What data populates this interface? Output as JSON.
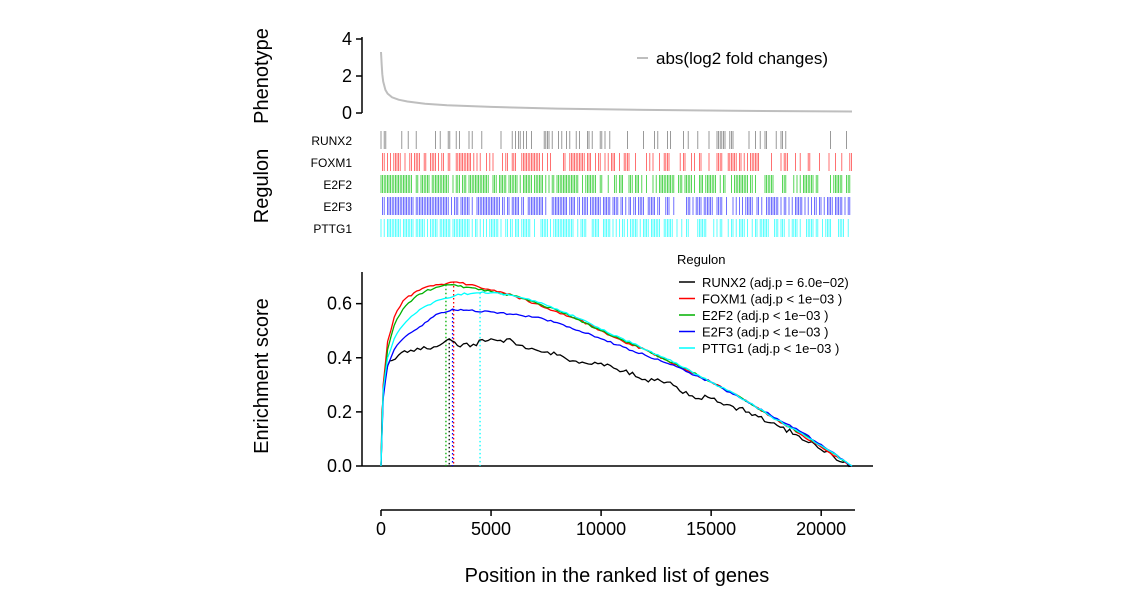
{
  "chart_data": [
    {
      "panel": "phenotype",
      "type": "line",
      "ylabel": "Phenotype",
      "ylim": [
        0,
        4
      ],
      "yticks": [
        "0",
        "2",
        "4"
      ],
      "legend": "abs(log2 fold changes)",
      "color": "#bebebe",
      "x": [
        0,
        30,
        60,
        100,
        200,
        300,
        500,
        800,
        1200,
        2000,
        3000,
        5000,
        8000,
        12000,
        16000,
        21400
      ],
      "y": [
        3.3,
        2.6,
        2.1,
        1.7,
        1.25,
        1.05,
        0.85,
        0.72,
        0.62,
        0.5,
        0.42,
        0.33,
        0.24,
        0.17,
        0.12,
        0.08
      ]
    },
    {
      "panel": "regulon",
      "type": "rug",
      "ylabel": "Regulon",
      "rows": [
        {
          "name": "RUNX2",
          "color": "#808080",
          "density": 0.25
        },
        {
          "name": "FOXM1",
          "color": "#ff4d4d",
          "density": 0.55
        },
        {
          "name": "E2F2",
          "color": "#2ecc2e",
          "density": 0.7
        },
        {
          "name": "E2F3",
          "color": "#4d4dff",
          "density": 0.75
        },
        {
          "name": "PTTG1",
          "color": "#33ffff",
          "density": 0.7
        }
      ]
    },
    {
      "panel": "enrichment",
      "type": "line",
      "ylabel": "Enrichment score",
      "xlabel": "Position in the ranked list of genes",
      "xlim": [
        0,
        21400
      ],
      "ylim": [
        0,
        0.68
      ],
      "xticks": [
        "0",
        "5000",
        "10000",
        "15000",
        "20000"
      ],
      "yticks": [
        "0.0",
        "0.2",
        "0.4",
        "0.6"
      ],
      "legend_title": "Regulon",
      "series": [
        {
          "name": "RUNX2 (adj.p = 6.0e−02)",
          "color": "#000000",
          "peak_x": 3100,
          "x": [
            0,
            50,
            150,
            300,
            500,
            800,
            1200,
            1800,
            2400,
            3100,
            3600,
            4200,
            5000,
            6000,
            7000,
            8000,
            9000,
            10000,
            11000,
            12000,
            13000,
            14000,
            15000,
            16000,
            17000,
            18000,
            19000,
            20000,
            21400
          ],
          "y": [
            0,
            0.2,
            0.32,
            0.37,
            0.39,
            0.41,
            0.42,
            0.43,
            0.44,
            0.47,
            0.44,
            0.45,
            0.47,
            0.46,
            0.43,
            0.41,
            0.38,
            0.38,
            0.35,
            0.32,
            0.31,
            0.26,
            0.25,
            0.22,
            0.19,
            0.15,
            0.11,
            0.06,
            0
          ]
        },
        {
          "name": "FOXM1 (adj.p < 1e−03  )",
          "color": "#ff0000",
          "peak_x": 3300,
          "x": [
            0,
            100,
            300,
            600,
            1000,
            1500,
            2000,
            2500,
            3000,
            3300,
            4000,
            5000,
            6000,
            7000,
            8000,
            9000,
            10000,
            11000,
            12000,
            13000,
            14000,
            15000,
            16000,
            17000,
            18000,
            19000,
            20000,
            21400
          ],
          "y": [
            0,
            0.3,
            0.46,
            0.55,
            0.61,
            0.64,
            0.66,
            0.67,
            0.675,
            0.68,
            0.67,
            0.65,
            0.63,
            0.6,
            0.57,
            0.54,
            0.5,
            0.46,
            0.43,
            0.39,
            0.35,
            0.31,
            0.27,
            0.22,
            0.17,
            0.12,
            0.07,
            0
          ]
        },
        {
          "name": "E2F2 (adj.p < 1e−03  )",
          "color": "#00b000",
          "peak_x": 2950,
          "x": [
            0,
            100,
            300,
            600,
            1000,
            1500,
            2000,
            2500,
            2950,
            3500,
            4000,
            5000,
            6000,
            7000,
            8000,
            9000,
            10000,
            11000,
            12000,
            13000,
            14000,
            15000,
            16000,
            17000,
            18000,
            19000,
            20000,
            21400
          ],
          "y": [
            0,
            0.28,
            0.43,
            0.52,
            0.58,
            0.62,
            0.645,
            0.66,
            0.67,
            0.665,
            0.66,
            0.645,
            0.63,
            0.605,
            0.575,
            0.54,
            0.5,
            0.465,
            0.43,
            0.39,
            0.355,
            0.31,
            0.27,
            0.22,
            0.17,
            0.125,
            0.075,
            0
          ]
        },
        {
          "name": "E2F3 (adj.p < 1e−03  )",
          "color": "#0000ff",
          "peak_x": 3250,
          "x": [
            0,
            100,
            300,
            600,
            1000,
            1500,
            2000,
            2500,
            3250,
            4000,
            5000,
            6000,
            7000,
            8000,
            9000,
            10000,
            11000,
            12000,
            13000,
            14000,
            15000,
            16000,
            17000,
            18000,
            19000,
            20000,
            21400
          ],
          "y": [
            0,
            0.25,
            0.37,
            0.43,
            0.47,
            0.5,
            0.53,
            0.56,
            0.58,
            0.575,
            0.57,
            0.56,
            0.55,
            0.53,
            0.5,
            0.47,
            0.44,
            0.41,
            0.38,
            0.345,
            0.31,
            0.265,
            0.22,
            0.175,
            0.13,
            0.08,
            0
          ]
        },
        {
          "name": "PTTG1 (adj.p < 1e−03  )",
          "color": "#00ffff",
          "peak_x": 4500,
          "x": [
            0,
            100,
            300,
            600,
            1000,
            1500,
            2000,
            2500,
            3000,
            3500,
            4500,
            5000,
            6000,
            7000,
            8000,
            9000,
            10000,
            11000,
            12000,
            13000,
            14000,
            15000,
            16000,
            17000,
            18000,
            19000,
            20000,
            21400
          ],
          "y": [
            0,
            0.28,
            0.4,
            0.47,
            0.52,
            0.56,
            0.59,
            0.61,
            0.62,
            0.635,
            0.64,
            0.64,
            0.63,
            0.61,
            0.58,
            0.545,
            0.505,
            0.47,
            0.43,
            0.395,
            0.355,
            0.31,
            0.27,
            0.22,
            0.17,
            0.125,
            0.075,
            0
          ]
        }
      ]
    }
  ]
}
